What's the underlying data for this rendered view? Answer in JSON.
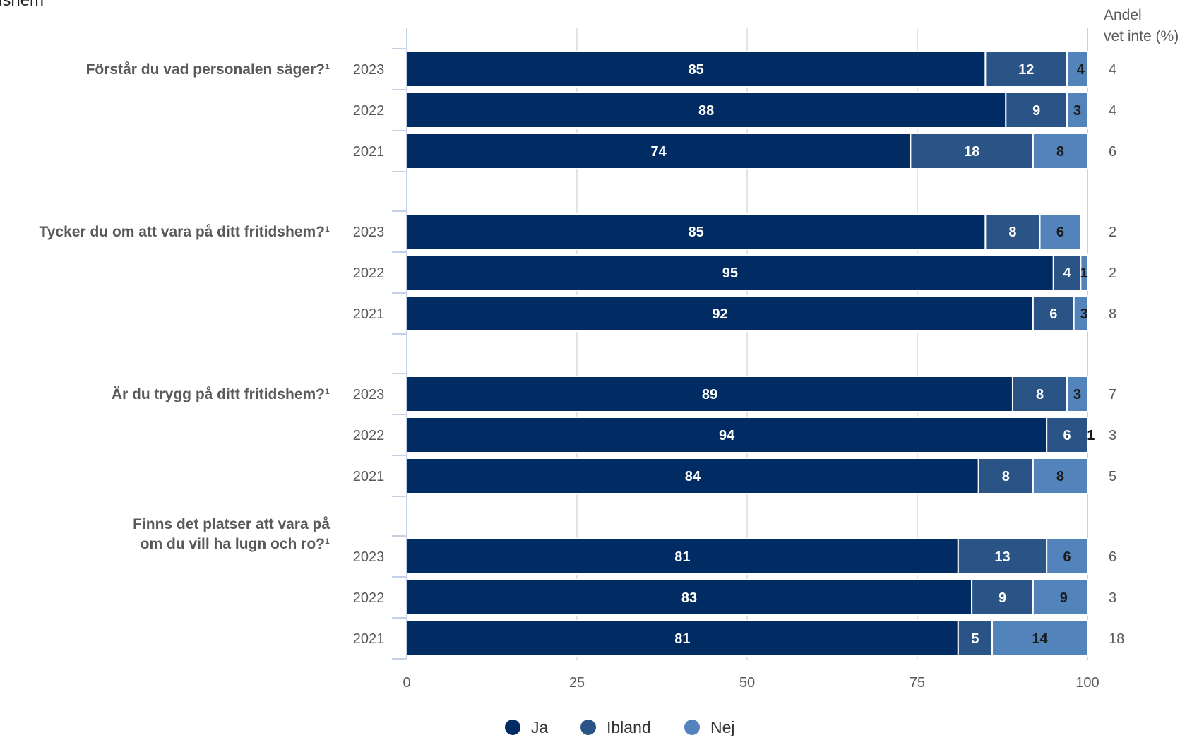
{
  "header": {
    "partial_title": "dshem"
  },
  "chart_data": {
    "type": "bar",
    "orientation": "horizontal",
    "stacked": true,
    "xlim": [
      0,
      100
    ],
    "x_ticks": [
      "0",
      "25",
      "50",
      "75",
      "100"
    ],
    "grid": true,
    "legend_position": "bottom",
    "side_label": [
      "Andel",
      "vet inte (%)"
    ],
    "series": [
      {
        "name": "Ja",
        "color": "#002b63"
      },
      {
        "name": "Ibland",
        "color": "#2a5485"
      },
      {
        "name": "Nej",
        "color": "#5383bb"
      }
    ],
    "questions": [
      {
        "label": [
          "Förstår du vad personalen säger?¹"
        ],
        "rows": [
          {
            "year": "2023",
            "values": [
              85,
              12,
              4
            ],
            "vet_inte": "4"
          },
          {
            "year": "2022",
            "values": [
              88,
              9,
              3
            ],
            "vet_inte": "4"
          },
          {
            "year": "2021",
            "values": [
              74,
              18,
              8
            ],
            "vet_inte": "6"
          }
        ]
      },
      {
        "label": [
          "Tycker du om att vara på ditt fritidshem?¹"
        ],
        "rows": [
          {
            "year": "2023",
            "values": [
              85,
              8,
              6
            ],
            "vet_inte": "2"
          },
          {
            "year": "2022",
            "values": [
              95,
              4,
              1
            ],
            "vet_inte": "2"
          },
          {
            "year": "2021",
            "values": [
              92,
              6,
              3
            ],
            "vet_inte": "8"
          }
        ]
      },
      {
        "label": [
          "Är du trygg på ditt fritidshem?¹"
        ],
        "rows": [
          {
            "year": "2023",
            "values": [
              89,
              8,
              3
            ],
            "vet_inte": "7"
          },
          {
            "year": "2022",
            "values": [
              94,
              6,
              1
            ],
            "vet_inte": "3"
          },
          {
            "year": "2021",
            "values": [
              84,
              8,
              8
            ],
            "vet_inte": "5"
          }
        ]
      },
      {
        "label": [
          "Finns det platser att vara på",
          "om du vill ha lugn och ro?¹"
        ],
        "rows": [
          {
            "year": "2023",
            "values": [
              81,
              13,
              6
            ],
            "vet_inte": "6"
          },
          {
            "year": "2022",
            "values": [
              83,
              9,
              9
            ],
            "vet_inte": "3"
          },
          {
            "year": "2021",
            "values": [
              81,
              5,
              14
            ],
            "vet_inte": "18"
          }
        ]
      }
    ]
  }
}
